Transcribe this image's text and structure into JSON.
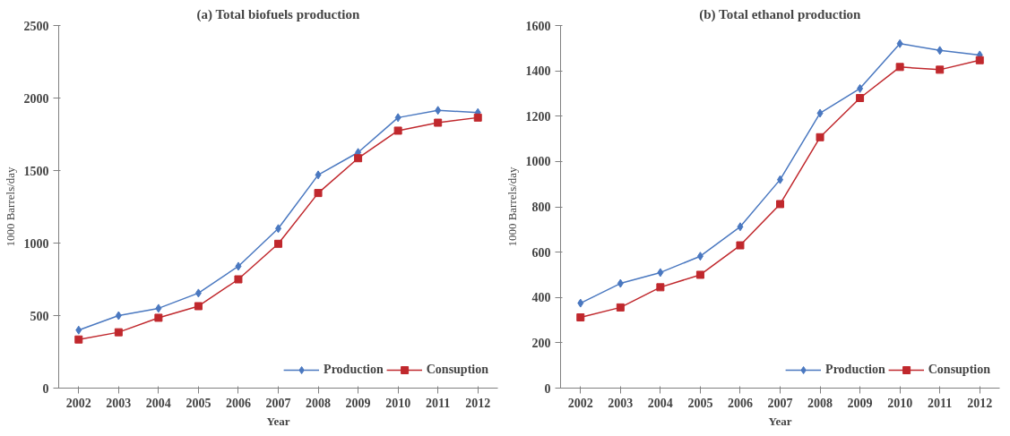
{
  "chart_data": [
    {
      "type": "line",
      "title": "(a) Total biofuels production",
      "xlabel": "Year",
      "ylabel": "1000 Barrels/day",
      "categories": [
        "2002",
        "2003",
        "2004",
        "2005",
        "2006",
        "2007",
        "2008",
        "2009",
        "2010",
        "2011",
        "2012"
      ],
      "ylim": [
        0,
        2500
      ],
      "yticks": [
        0,
        500,
        1000,
        1500,
        2000,
        2500
      ],
      "grid": false,
      "legend": "bottom right",
      "series": [
        {
          "name": "Production",
          "color": "#4a78c0",
          "marker": "diamond",
          "values": [
            400,
            500,
            550,
            655,
            840,
            1100,
            1470,
            1625,
            1865,
            1915,
            1900
          ]
        },
        {
          "name": "Consuption",
          "color": "#c0282d",
          "marker": "square",
          "values": [
            335,
            385,
            485,
            565,
            750,
            995,
            1345,
            1585,
            1775,
            1830,
            1865
          ]
        }
      ]
    },
    {
      "type": "line",
      "title": "(b) Total ethanol production",
      "xlabel": "Year",
      "ylabel": "1000 Barrels/day",
      "categories": [
        "2002",
        "2003",
        "2004",
        "2005",
        "2006",
        "2007",
        "2008",
        "2009",
        "2010",
        "2011",
        "2012"
      ],
      "ylim": [
        0,
        1600
      ],
      "yticks": [
        0,
        200,
        400,
        600,
        800,
        1000,
        1200,
        1400,
        1600
      ],
      "grid": false,
      "legend": "bottom right",
      "series": [
        {
          "name": "Production",
          "color": "#4a78c0",
          "marker": "diamond",
          "values": [
            375,
            462,
            510,
            582,
            712,
            920,
            1213,
            1322,
            1520,
            1490,
            1470
          ]
        },
        {
          "name": "Consuption",
          "color": "#c0282d",
          "marker": "square",
          "values": [
            312,
            356,
            445,
            500,
            630,
            812,
            1107,
            1280,
            1417,
            1405,
            1447
          ]
        }
      ]
    }
  ]
}
